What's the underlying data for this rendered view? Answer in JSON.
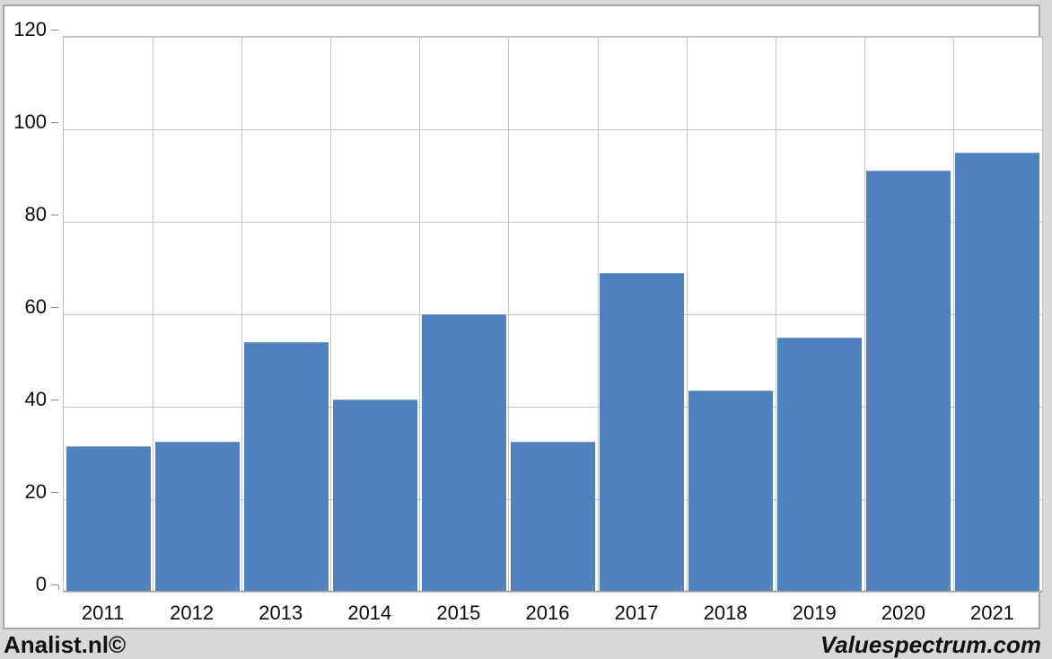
{
  "chart_data": {
    "type": "bar",
    "categories": [
      "2011",
      "2012",
      "2013",
      "2014",
      "2015",
      "2016",
      "2017",
      "2018",
      "2019",
      "2020",
      "2021"
    ],
    "values": [
      31.5,
      32.5,
      54,
      41.5,
      60,
      32.5,
      69,
      43.5,
      55,
      91,
      95
    ],
    "title": "",
    "xlabel": "",
    "ylabel": "",
    "ylim": [
      0,
      120
    ],
    "yticks": [
      0,
      20,
      40,
      60,
      80,
      100,
      120
    ],
    "grid": true,
    "legend": false,
    "bar_color": "#4e81bd",
    "gridline_color": "#c6c6c6",
    "plot_border_color": "#bfbfbf",
    "background_color": "#d9d9d9"
  },
  "footer": {
    "left_brand": "Analist.nl©",
    "right_brand": "Valuespectrum.com"
  }
}
